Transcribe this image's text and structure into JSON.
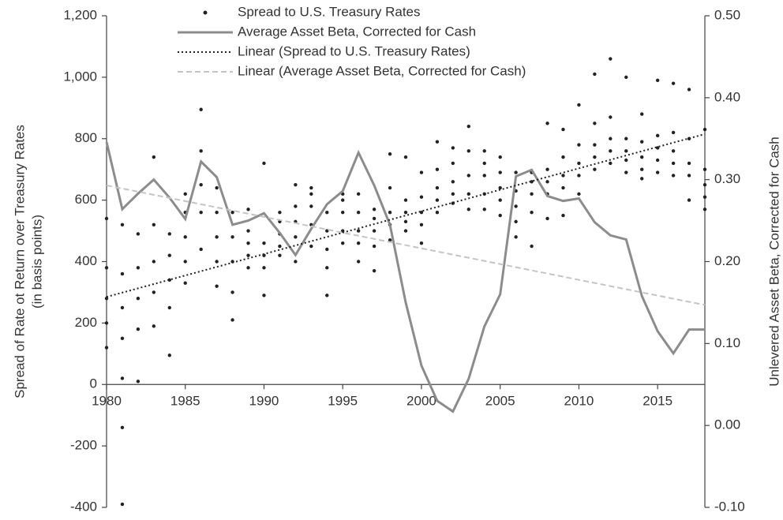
{
  "chart_data": {
    "type": "combo",
    "ylabel": [
      "Spread of Rate ot Return over Treasury Rates",
      "(in basis points)"
    ],
    "y2label": "Unlevered Asset Beta, Corrected for Cash",
    "xlim": [
      1980,
      2018
    ],
    "xticks": [
      1980,
      1985,
      1990,
      1995,
      2000,
      2005,
      2010,
      2015
    ],
    "ylim": [
      -400,
      1200
    ],
    "yticks": [
      {
        "value": 1200,
        "label": "1,200"
      },
      {
        "value": 1000,
        "label": "1,000"
      },
      800,
      600,
      400,
      200,
      0,
      -200,
      -400
    ],
    "y2lim": [
      -0.1,
      0.5
    ],
    "y2ticks": [
      {
        "value": 0.5,
        "label": "0.50"
      },
      {
        "value": 0.4,
        "label": "0.40"
      },
      {
        "value": 0.3,
        "label": "0.30"
      },
      {
        "value": 0.2,
        "label": "0.20"
      },
      {
        "value": 0.1,
        "label": "0.10"
      },
      {
        "value": 0,
        "label": "0.00"
      },
      {
        "value": -0.1,
        "label": "-0.10"
      }
    ],
    "grid": false,
    "legend": "top",
    "series": [
      {
        "name": "Spread to U.S. Treasury Rates",
        "type": "scatter",
        "color": "#222222",
        "x": [
          1980,
          1980,
          1980,
          1980,
          1980,
          1981,
          1981,
          1981,
          1981,
          1981,
          1981,
          1981,
          1982,
          1982,
          1982,
          1982,
          1982,
          1983,
          1983,
          1983,
          1983,
          1983,
          1984,
          1984,
          1984,
          1984,
          1984,
          1985,
          1985,
          1985,
          1985,
          1985,
          1986,
          1986,
          1986,
          1986,
          1986,
          1987,
          1987,
          1987,
          1987,
          1987,
          1988,
          1988,
          1988,
          1988,
          1988,
          1989,
          1989,
          1989,
          1989,
          1989,
          1990,
          1990,
          1990,
          1990,
          1990,
          1991,
          1991,
          1991,
          1991,
          1991,
          1992,
          1992,
          1992,
          1992,
          1992,
          1993,
          1993,
          1993,
          1993,
          1993,
          1994,
          1994,
          1994,
          1994,
          1994,
          1995,
          1995,
          1995,
          1995,
          1995,
          1996,
          1996,
          1996,
          1996,
          1996,
          1997,
          1997,
          1997,
          1997,
          1997,
          1998,
          1998,
          1998,
          1998,
          1998,
          1999,
          1999,
          1999,
          1999,
          1999,
          2000,
          2000,
          2000,
          2000,
          2000,
          2001,
          2001,
          2001,
          2001,
          2001,
          2002,
          2002,
          2002,
          2002,
          2002,
          2003,
          2003,
          2003,
          2003,
          2003,
          2004,
          2004,
          2004,
          2004,
          2004,
          2005,
          2005,
          2005,
          2005,
          2005,
          2006,
          2006,
          2006,
          2006,
          2006,
          2007,
          2007,
          2007,
          2007,
          2007,
          2008,
          2008,
          2008,
          2008,
          2008,
          2009,
          2009,
          2009,
          2009,
          2009,
          2010,
          2010,
          2010,
          2010,
          2010,
          2011,
          2011,
          2011,
          2011,
          2011,
          2012,
          2012,
          2012,
          2012,
          2012,
          2013,
          2013,
          2013,
          2013,
          2013,
          2014,
          2014,
          2014,
          2014,
          2014,
          2015,
          2015,
          2015,
          2015,
          2015,
          2016,
          2016,
          2016,
          2016,
          2016,
          2017,
          2017,
          2017,
          2017,
          2017,
          2018,
          2018,
          2018,
          2018,
          2018
        ],
        "values": [
          120,
          200,
          280,
          380,
          540,
          -390,
          -140,
          20,
          150,
          250,
          360,
          520,
          10,
          180,
          280,
          380,
          490,
          190,
          300,
          400,
          520,
          740,
          95,
          250,
          340,
          420,
          490,
          330,
          400,
          480,
          560,
          620,
          440,
          560,
          650,
          760,
          895,
          320,
          400,
          480,
          560,
          640,
          210,
          300,
          400,
          480,
          560,
          380,
          420,
          460,
          500,
          570,
          290,
          380,
          420,
          460,
          720,
          420,
          450,
          490,
          530,
          560,
          400,
          480,
          530,
          580,
          650,
          450,
          520,
          580,
          620,
          640,
          290,
          380,
          440,
          500,
          560,
          460,
          500,
          560,
          600,
          620,
          400,
          460,
          500,
          560,
          620,
          370,
          450,
          500,
          540,
          570,
          470,
          520,
          560,
          640,
          750,
          500,
          530,
          560,
          600,
          740,
          460,
          520,
          560,
          610,
          690,
          560,
          600,
          640,
          700,
          790,
          590,
          620,
          660,
          720,
          770,
          570,
          620,
          680,
          760,
          840,
          570,
          620,
          680,
          720,
          760,
          550,
          600,
          640,
          690,
          740,
          480,
          530,
          580,
          630,
          690,
          450,
          560,
          620,
          660,
          690,
          540,
          620,
          660,
          700,
          850,
          550,
          640,
          680,
          740,
          830,
          620,
          680,
          720,
          780,
          910,
          700,
          740,
          780,
          850,
          1010,
          720,
          760,
          800,
          870,
          1060,
          690,
          730,
          760,
          800,
          1000,
          670,
          700,
          740,
          790,
          880,
          690,
          730,
          770,
          810,
          990,
          680,
          720,
          760,
          820,
          980,
          600,
          680,
          720,
          800,
          960,
          570,
          610,
          650,
          700,
          830
        ]
      },
      {
        "name": "Average Asset Beta, Corrected for Cash",
        "type": "line",
        "axis": "y2",
        "color": "#8c8c8c",
        "linestyle": "solid",
        "x": [
          1980,
          1981,
          1982,
          1983,
          1984,
          1985,
          1986,
          1987,
          1988,
          1989,
          1990,
          1991,
          1992,
          1993,
          1994,
          1995,
          1996,
          1997,
          1998,
          1999,
          2000,
          2001,
          2002,
          2003,
          2004,
          2005,
          2006,
          2007,
          2008,
          2009,
          2010,
          2011,
          2012,
          2013,
          2014,
          2015,
          2016,
          2017,
          2018
        ],
        "values": [
          0.346,
          0.264,
          0.283,
          0.3,
          0.278,
          0.252,
          0.322,
          0.303,
          0.245,
          0.25,
          0.259,
          0.235,
          0.208,
          0.24,
          0.27,
          0.286,
          0.333,
          0.293,
          0.245,
          0.15,
          0.073,
          0.03,
          0.017,
          0.057,
          0.121,
          0.16,
          0.304,
          0.312,
          0.28,
          0.274,
          0.277,
          0.248,
          0.232,
          0.227,
          0.158,
          0.115,
          0.088,
          0.117,
          0.117
        ]
      },
      {
        "name": "Linear (Spread to U.S. Treasury Rates)",
        "type": "line",
        "color": "#222222",
        "linestyle": "dotted",
        "x": [
          1980,
          2018
        ],
        "values": [
          285,
          815
        ]
      },
      {
        "name": "Linear (Average Asset Beta, Corrected for Cash)",
        "type": "line",
        "axis": "y2",
        "color": "#c4c4c4",
        "linestyle": "dashed",
        "x": [
          1980,
          2018
        ],
        "values": [
          0.293,
          0.147
        ]
      }
    ]
  }
}
